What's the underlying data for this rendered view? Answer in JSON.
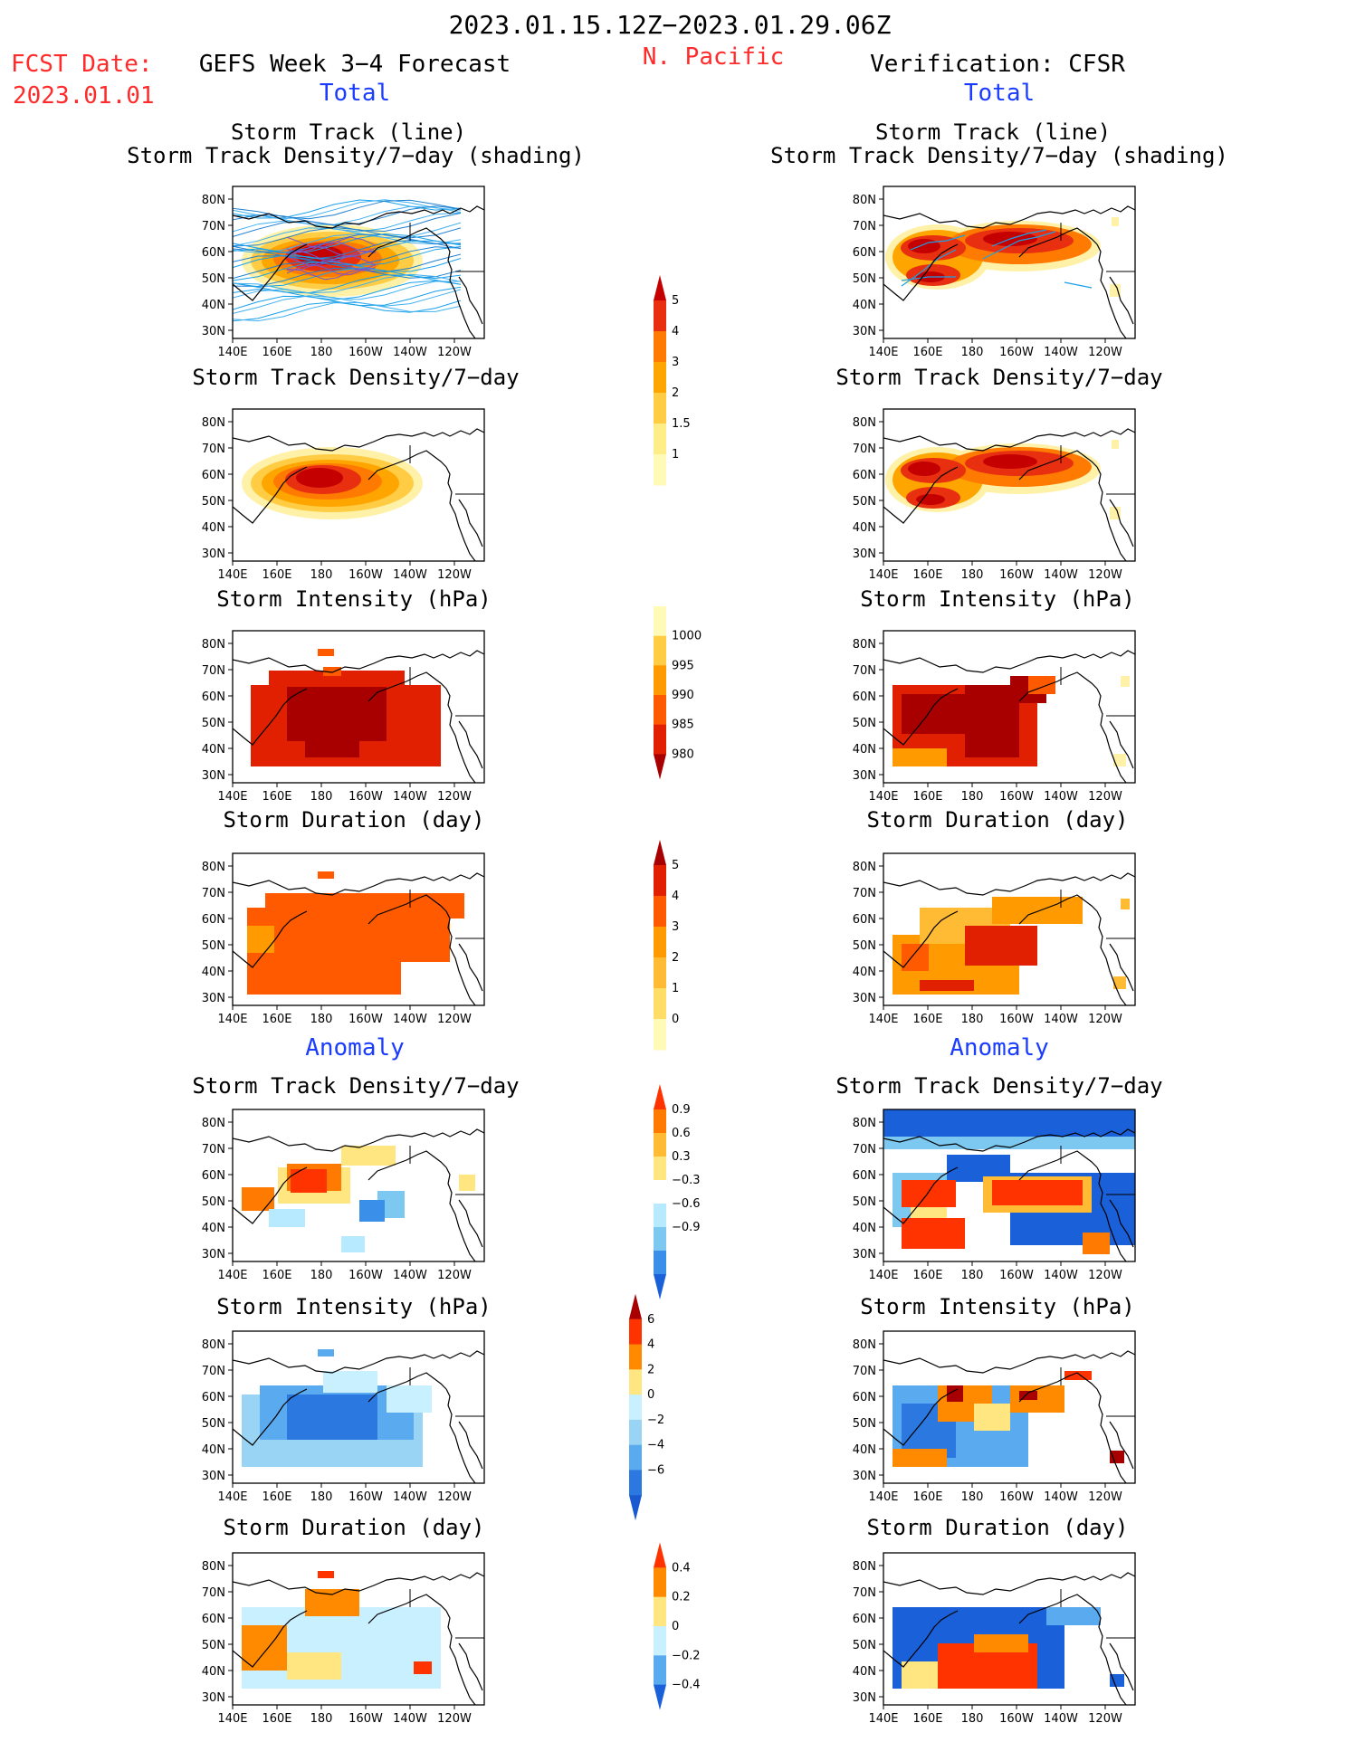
{
  "header": {
    "period": "2023.01.15.12Z−2023.01.29.06Z",
    "region": "N. Pacific",
    "fcst_label": "FCST Date:",
    "fcst_date": "2023.01.01",
    "left_title": "GEFS Week 3−4 Forecast",
    "right_title": "Verification: CFSR",
    "total_label": "Total",
    "anomaly_label": "Anomaly"
  },
  "axes": {
    "lat_ticks": [
      "80N",
      "70N",
      "60N",
      "50N",
      "40N",
      "30N"
    ],
    "lon_ticks": [
      "140E",
      "160E",
      "180",
      "160W",
      "140W",
      "120W"
    ]
  },
  "chart_data": [
    {
      "id": "L1",
      "type": "heatmap",
      "title": [
        "Storm Track (line)",
        "Storm Track Density/7−day (shading)"
      ],
      "xlim": [
        140,
        245
      ],
      "ylim": [
        25,
        85
      ],
      "colors": "fill4",
      "tracks": 28
    },
    {
      "id": "R1",
      "type": "heatmap",
      "title": [
        "Storm Track (line)",
        "Storm Track Density/7−day (shading)"
      ],
      "xlim": [
        140,
        245
      ],
      "ylim": [
        25,
        85
      ],
      "colors": "fill4",
      "tracks": 6
    },
    {
      "id": "L2",
      "type": "heatmap",
      "title": [
        "Storm Track Density/7−day"
      ],
      "xlim": [
        140,
        245
      ],
      "ylim": [
        25,
        85
      ]
    },
    {
      "id": "R2",
      "type": "heatmap",
      "title": [
        "Storm Track Density/7−day"
      ],
      "xlim": [
        140,
        245
      ],
      "ylim": [
        25,
        85
      ]
    },
    {
      "id": "L3",
      "type": "heatmap",
      "title": [
        "Storm Intensity (hPa)"
      ],
      "xlim": [
        140,
        245
      ],
      "ylim": [
        25,
        85
      ]
    },
    {
      "id": "R3",
      "type": "heatmap",
      "title": [
        "Storm Intensity (hPa)"
      ],
      "xlim": [
        140,
        245
      ],
      "ylim": [
        25,
        85
      ]
    },
    {
      "id": "L4",
      "type": "heatmap",
      "title": [
        "Storm Duration (day)"
      ],
      "xlim": [
        140,
        245
      ],
      "ylim": [
        25,
        85
      ]
    },
    {
      "id": "R4",
      "type": "heatmap",
      "title": [
        "Storm Duration (day)"
      ],
      "xlim": [
        140,
        245
      ],
      "ylim": [
        25,
        85
      ]
    },
    {
      "id": "L5",
      "type": "heatmap",
      "title": [
        "Storm Track Density/7−day"
      ],
      "xlim": [
        140,
        245
      ],
      "ylim": [
        25,
        85
      ]
    },
    {
      "id": "R5",
      "type": "heatmap",
      "title": [
        "Storm Track Density/7−day"
      ],
      "xlim": [
        140,
        245
      ],
      "ylim": [
        25,
        85
      ]
    },
    {
      "id": "L6",
      "type": "heatmap",
      "title": [
        "Storm Intensity (hPa)"
      ],
      "xlim": [
        140,
        245
      ],
      "ylim": [
        25,
        85
      ]
    },
    {
      "id": "R6",
      "type": "heatmap",
      "title": [
        "Storm Intensity (hPa)"
      ],
      "xlim": [
        140,
        245
      ],
      "ylim": [
        25,
        85
      ]
    },
    {
      "id": "L7",
      "type": "heatmap",
      "title": [
        "Storm Duration (day)"
      ],
      "xlim": [
        140,
        245
      ],
      "ylim": [
        25,
        85
      ]
    },
    {
      "id": "R7",
      "type": "heatmap",
      "title": [
        "Storm Duration (day)"
      ],
      "xlim": [
        140,
        245
      ],
      "ylim": [
        25,
        85
      ]
    }
  ],
  "colorbars": {
    "density": {
      "labels": [
        "5",
        "4",
        "3",
        "2",
        "1.5",
        "1"
      ],
      "colors": [
        "#c40000",
        "#e83010",
        "#ff7a00",
        "#ffa500",
        "#ffcc44",
        "#ffee88",
        "#fffab8"
      ]
    },
    "intensity": {
      "labels": [
        "1000",
        "995",
        "990",
        "985",
        "980"
      ],
      "colors": [
        "#fffab8",
        "#ffcc44",
        "#ff9a00",
        "#ff5a00",
        "#e02000",
        "#a80000"
      ]
    },
    "duration": {
      "labels": [
        "5",
        "4",
        "3",
        "2",
        "1",
        "0"
      ],
      "colors": [
        "#a80000",
        "#e02000",
        "#ff5a00",
        "#ff9a00",
        "#ffbb33",
        "#ffdd66",
        "#fffab8"
      ]
    },
    "anom_density": {
      "labels": [
        "0.9",
        "0.6",
        "0.3",
        "−0.3",
        "−0.6",
        "−0.9"
      ],
      "colors": [
        "#ff3300",
        "#ff7a00",
        "#ffbb33",
        "#ffe680",
        "#ffffff",
        "#b8eaff",
        "#7cc8f0",
        "#3a90e8",
        "#1a60d8"
      ]
    },
    "anom_intensity": {
      "labels": [
        "6",
        "4",
        "2",
        "0",
        "−2",
        "−4",
        "−6"
      ],
      "colors": [
        "#a80000",
        "#ff3300",
        "#ff8a00",
        "#ffe680",
        "#c8f0ff",
        "#9ad4f5",
        "#5aaaf0",
        "#2a78e0",
        "#1a5ad0"
      ]
    },
    "anom_duration": {
      "labels": [
        "0.4",
        "0.2",
        "0",
        "−0.2",
        "−0.4"
      ],
      "colors": [
        "#ff3300",
        "#ff8a00",
        "#ffe680",
        "#c8f0ff",
        "#5aaaf0",
        "#1a60d8"
      ]
    }
  }
}
